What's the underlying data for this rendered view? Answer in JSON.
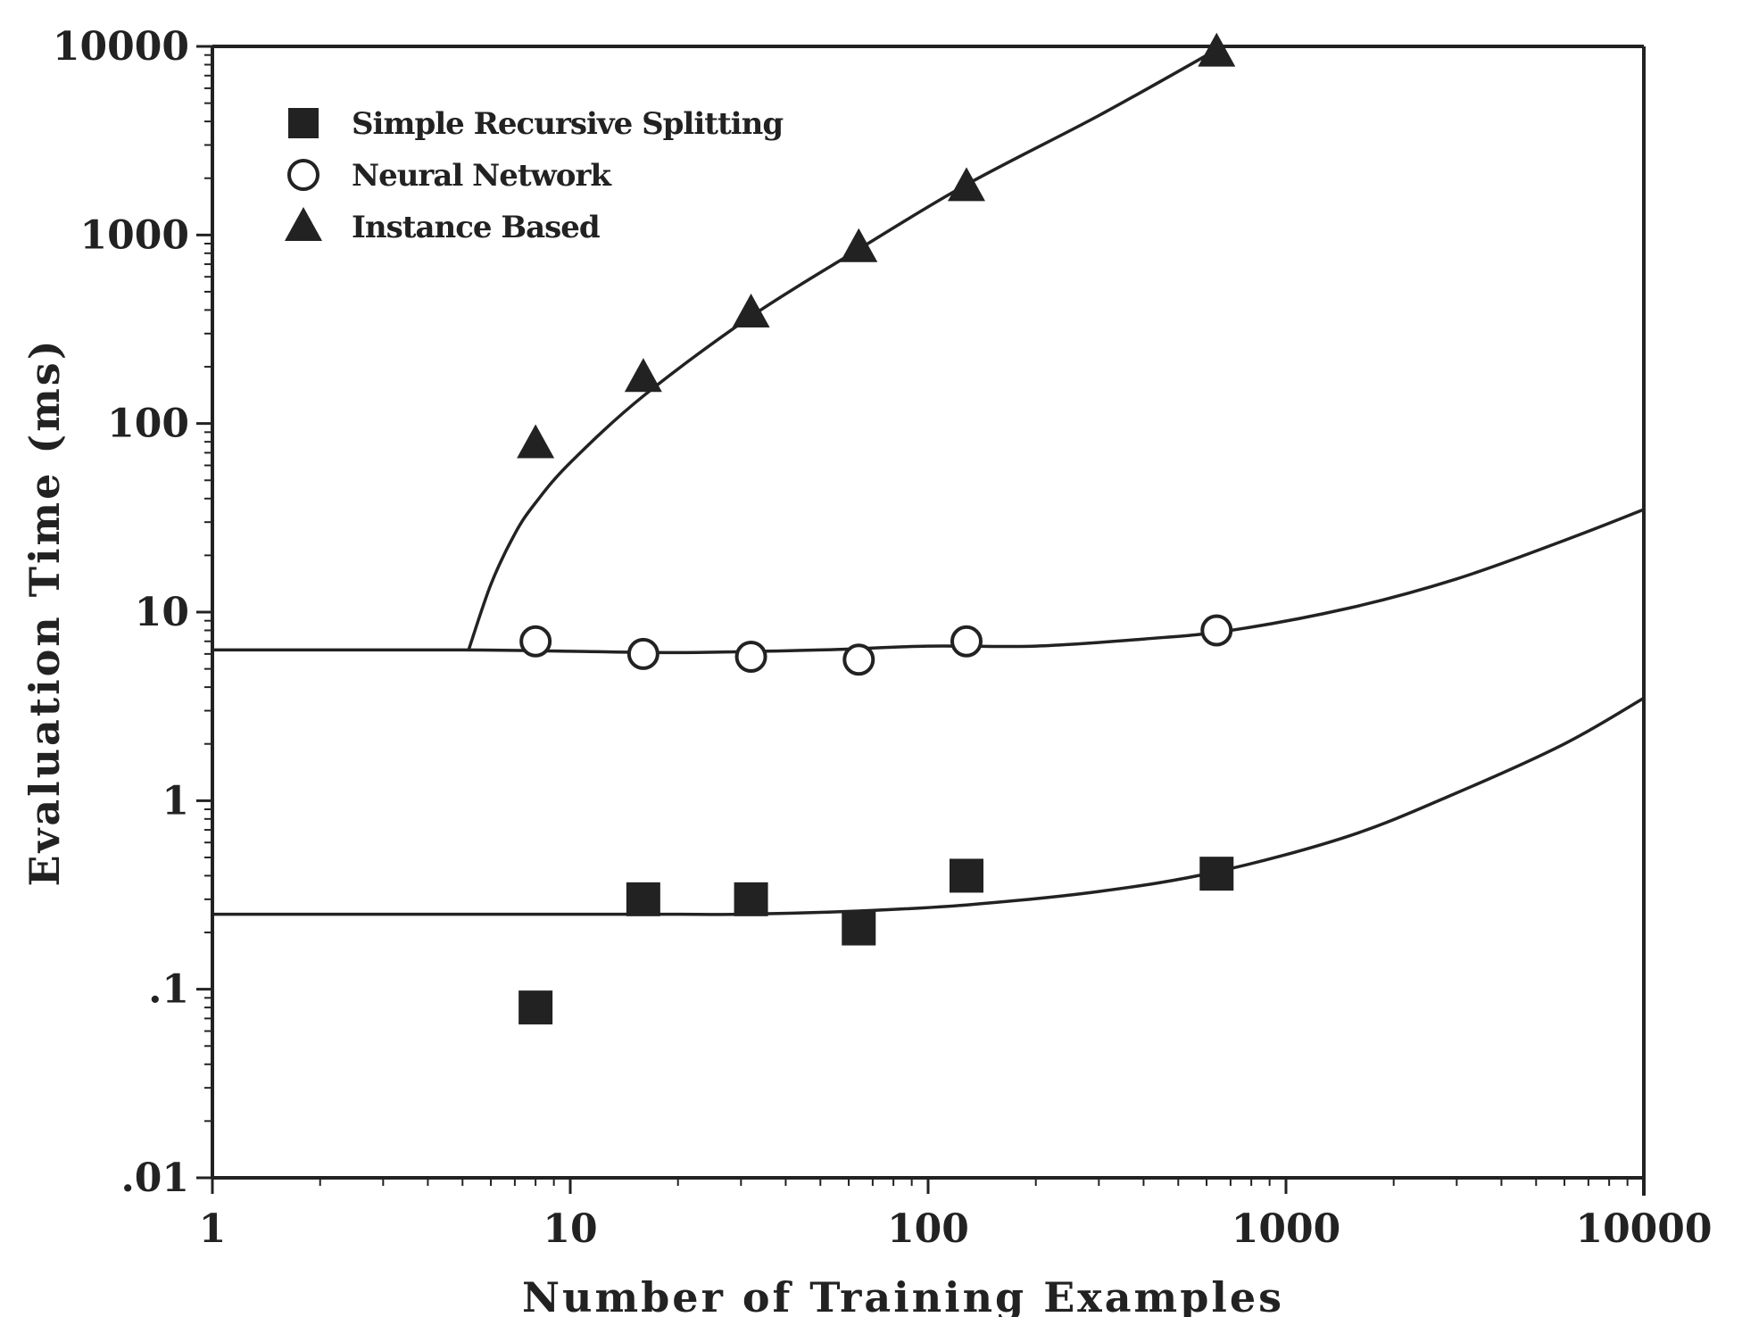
{
  "chart_data": {
    "type": "scatter",
    "title": "",
    "xlabel": "Number of Training Examples",
    "ylabel": "Evaluation Time (ms)",
    "xscale": "log",
    "yscale": "log",
    "xlim": [
      1,
      10000
    ],
    "ylim": [
      0.01,
      10000
    ],
    "x_tick_labels": [
      "1",
      "10",
      "100",
      "1000",
      "10000"
    ],
    "y_tick_labels": [
      ".01",
      ".1",
      "1",
      "10",
      "100",
      "1000",
      "10000"
    ],
    "grid": false,
    "legend_position": "top-left",
    "series": [
      {
        "name": "Simple Recursive Splitting",
        "marker": "filled-square",
        "color": "#222222",
        "points": [
          [
            8,
            0.08
          ],
          [
            16,
            0.3
          ],
          [
            32,
            0.3
          ],
          [
            64,
            0.21
          ],
          [
            128,
            0.4
          ],
          [
            640,
            0.41
          ]
        ],
        "fit_curve": [
          [
            1,
            0.25
          ],
          [
            16,
            0.25
          ],
          [
            30,
            0.25
          ],
          [
            64,
            0.26
          ],
          [
            128,
            0.28
          ],
          [
            300,
            0.33
          ],
          [
            640,
            0.42
          ],
          [
            1500,
            0.65
          ],
          [
            3000,
            1.1
          ],
          [
            6000,
            2.0
          ],
          [
            10000,
            3.5
          ]
        ]
      },
      {
        "name": "Neural Network",
        "marker": "open-circle",
        "color": "#222222",
        "points": [
          [
            8,
            7
          ],
          [
            16,
            6
          ],
          [
            32,
            5.8
          ],
          [
            64,
            5.6
          ],
          [
            128,
            7
          ],
          [
            640,
            8
          ]
        ],
        "fit_curve": [
          [
            1,
            6.3
          ],
          [
            5,
            6.3
          ],
          [
            10,
            6.2
          ],
          [
            20,
            6.1
          ],
          [
            50,
            6.3
          ],
          [
            100,
            6.6
          ],
          [
            200,
            6.6
          ],
          [
            400,
            7.2
          ],
          [
            700,
            8
          ],
          [
            1500,
            10.5
          ],
          [
            3000,
            15
          ],
          [
            6000,
            24
          ],
          [
            10000,
            35
          ]
        ]
      },
      {
        "name": "Instance Based",
        "marker": "filled-triangle",
        "color": "#222222",
        "points": [
          [
            8,
            78
          ],
          [
            16,
            175
          ],
          [
            32,
            385
          ],
          [
            64,
            855
          ],
          [
            128,
            1800
          ],
          [
            640,
            9300
          ]
        ],
        "fit_curve": [
          [
            5.2,
            6.3
          ],
          [
            6,
            14
          ],
          [
            7,
            26
          ],
          [
            8,
            38
          ],
          [
            10,
            62
          ],
          [
            16,
            140
          ],
          [
            32,
            370
          ],
          [
            64,
            840
          ],
          [
            128,
            1850
          ],
          [
            300,
            4300
          ],
          [
            640,
            9600
          ]
        ]
      }
    ]
  }
}
